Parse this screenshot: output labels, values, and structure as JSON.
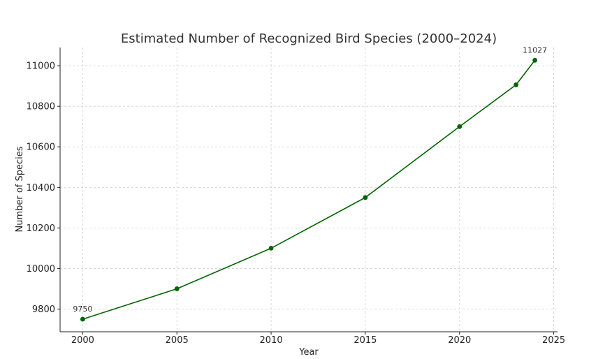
{
  "chart_data": {
    "type": "line",
    "title": "Estimated Number of Recognized Bird Species (2000–2024)",
    "xlabel": "Year",
    "ylabel": "Number of Species",
    "xlim": [
      1998.8,
      2025.2
    ],
    "ylim": [
      9688,
      11090
    ],
    "xticks": [
      2000,
      2005,
      2010,
      2015,
      2020,
      2025
    ],
    "yticks": [
      9800,
      10000,
      10200,
      10400,
      10600,
      10800,
      11000
    ],
    "grid": true,
    "color": "#006400",
    "series": [
      {
        "x": [
          2000,
          2005,
          2010,
          2015,
          2020,
          2023,
          2024
        ],
        "y": [
          9750,
          9900,
          10100,
          10350,
          10700,
          10906,
          11027
        ]
      }
    ],
    "annotations": [
      {
        "x": 2000,
        "y": 9750,
        "text": "9750"
      },
      {
        "x": 2024,
        "y": 11027,
        "text": "11027"
      }
    ]
  }
}
